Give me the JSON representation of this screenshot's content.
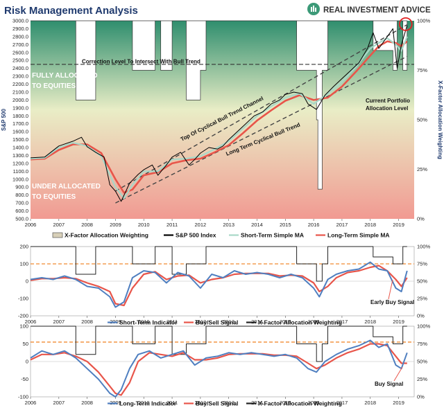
{
  "header": {
    "title": "Risk Management Analysis",
    "brand": "REAL INVESTMENT ADVICE"
  },
  "colors": {
    "title": "#1f3a6e",
    "black_line": "#000000",
    "short_ma": "#a8d8c8",
    "long_ma": "#e8554a",
    "indicator": "#4f7fc0",
    "signal": "#e8554a",
    "threshold": "#f08a30",
    "channel": "#444444",
    "green_top": "#3c9a78",
    "red_bottom": "#f09c96"
  },
  "chart_data": [
    {
      "type": "line",
      "ylabel": "S&P 500",
      "y2label": "X-Factor Allocation Weighting",
      "ylim": [
        500,
        3000
      ],
      "y2lim": [
        0,
        100
      ],
      "yticks": [
        "3000.0",
        "2900.0",
        "2800.0",
        "2700.0",
        "2600.0",
        "2500.0",
        "2400.0",
        "2300.0",
        "2200.0",
        "2100.0",
        "2000.0",
        "1900.0",
        "1800.0",
        "1700.0",
        "1600.0",
        "1500.0",
        "1400.0",
        "1300.0",
        "1200.0",
        "1100.0",
        "1000.0",
        "900.0",
        "800.0",
        "700.0",
        "600.0",
        "500.0"
      ],
      "y2ticks": [
        "100%",
        "75%",
        "50%",
        "25%",
        "0%"
      ],
      "xticks": [
        "2006",
        "2007",
        "2008",
        "2009",
        "2010",
        "2011",
        "2012",
        "2013",
        "2014",
        "2015",
        "2016",
        "2017",
        "2018",
        "2019"
      ],
      "legend": [
        "X-Factor Allocation Weighting",
        "S&P 500 Index",
        "Short-Term Simple MA",
        "Long-Term Simple MA"
      ],
      "annotations": [
        "Correction Level To Intersect With Bull Trend",
        "FULLY ALLOCATED",
        "TO EQUITIES",
        "UNDER ALLOCATED",
        "TO EQUITIES",
        "Top Of Cyclical Bull Trend Channel",
        "Long Term Cyclical Bull Trend",
        "Current Portfolio",
        "Allocation Level"
      ],
      "correction_level": 2450,
      "sp500": {
        "x": [
          2006.0,
          2006.5,
          2007.0,
          2007.5,
          2007.8,
          2008.0,
          2008.3,
          2008.6,
          2008.8,
          2009.0,
          2009.2,
          2009.5,
          2009.8,
          2010.0,
          2010.3,
          2010.5,
          2010.8,
          2011.0,
          2011.3,
          2011.6,
          2011.8,
          2012.0,
          2012.3,
          2012.6,
          2012.8,
          2013.0,
          2013.3,
          2013.6,
          2013.9,
          2014.2,
          2014.5,
          2014.8,
          2015.0,
          2015.3,
          2015.6,
          2015.8,
          2016.1,
          2016.4,
          2016.7,
          2017.0,
          2017.3,
          2017.6,
          2017.9,
          2018.1,
          2018.3,
          2018.6,
          2018.8,
          2018.95,
          2019.1,
          2019.3
        ],
        "y": [
          1270,
          1280,
          1420,
          1480,
          1530,
          1410,
          1340,
          1280,
          930,
          850,
          720,
          950,
          1060,
          1120,
          1180,
          1050,
          1180,
          1280,
          1340,
          1180,
          1250,
          1330,
          1400,
          1380,
          1420,
          1500,
          1600,
          1700,
          1800,
          1850,
          1950,
          2000,
          2070,
          2100,
          2080,
          1950,
          1880,
          2060,
          2170,
          2270,
          2370,
          2470,
          2650,
          2850,
          2650,
          2800,
          2900,
          2400,
          2700,
          2940
        ]
      },
      "short_ma": {
        "x": [
          2006.0,
          2006.5,
          2007.0,
          2007.5,
          2008.0,
          2008.5,
          2009.0,
          2009.3,
          2009.6,
          2010.0,
          2010.5,
          2011.0,
          2011.5,
          2012.0,
          2012.5,
          2013.0,
          2013.5,
          2014.0,
          2014.5,
          2015.0,
          2015.5,
          2016.0,
          2016.5,
          2017.0,
          2017.5,
          2018.0,
          2018.3,
          2018.6,
          2018.9,
          2019.1,
          2019.3
        ],
        "y": [
          1260,
          1270,
          1400,
          1460,
          1420,
          1290,
          900,
          760,
          930,
          1100,
          1100,
          1250,
          1260,
          1290,
          1380,
          1480,
          1640,
          1800,
          1920,
          2030,
          2080,
          1950,
          2080,
          2230,
          2420,
          2650,
          2720,
          2780,
          2700,
          2620,
          2800
        ]
      },
      "long_ma": {
        "x": [
          2006.0,
          2006.5,
          2007.0,
          2007.5,
          2008.0,
          2008.5,
          2009.0,
          2009.3,
          2009.6,
          2010.0,
          2010.5,
          2011.0,
          2011.5,
          2012.0,
          2012.5,
          2013.0,
          2013.5,
          2014.0,
          2014.5,
          2015.0,
          2015.5,
          2016.0,
          2016.5,
          2017.0,
          2017.5,
          2018.0,
          2018.3,
          2018.6,
          2018.9,
          2019.1,
          2019.3
        ],
        "y": [
          1250,
          1260,
          1370,
          1440,
          1440,
          1330,
          1000,
          830,
          870,
          1050,
          1090,
          1200,
          1240,
          1260,
          1340,
          1430,
          1580,
          1740,
          1870,
          1990,
          2060,
          2000,
          2030,
          2170,
          2360,
          2560,
          2680,
          2740,
          2720,
          2680,
          2740
        ]
      },
      "allocation": {
        "x": [
          2006.0,
          2007.6,
          2007.6,
          2008.3,
          2008.3,
          2009.6,
          2009.6,
          2010.4,
          2010.4,
          2010.6,
          2010.6,
          2011.0,
          2011.0,
          2011.5,
          2011.5,
          2012.0,
          2012.0,
          2012.2,
          2012.2,
          2015.4,
          2015.4,
          2016.1,
          2016.1,
          2016.15,
          2016.15,
          2016.3,
          2016.3,
          2016.5,
          2016.5,
          2018.1,
          2018.1,
          2018.8,
          2018.8,
          2018.95,
          2018.95,
          2019.15,
          2019.15,
          2019.3
        ],
        "y": [
          100,
          100,
          60,
          60,
          100,
          100,
          75,
          75,
          100,
          100,
          75,
          75,
          100,
          100,
          60,
          60,
          75,
          75,
          100,
          100,
          75,
          75,
          50,
          50,
          15,
          15,
          75,
          75,
          100,
          100,
          85,
          85,
          75,
          75,
          100,
          100,
          75,
          75
        ]
      },
      "channel_upper": {
        "x": [
          2009.0,
          2019.3
        ],
        "y": [
          850,
          2950
        ]
      },
      "channel_lower": {
        "x": [
          2009.0,
          2019.3
        ],
        "y": [
          700,
          2550
        ]
      }
    },
    {
      "type": "line",
      "ylim": [
        -200,
        200
      ],
      "y2lim": [
        0,
        100
      ],
      "yticks": [
        "200",
        "100",
        "0",
        "-100",
        "-200"
      ],
      "y2ticks": [
        "100%",
        "75%",
        "50%",
        "25%",
        "0%"
      ],
      "xticks": [
        "2006",
        "2007",
        "2008",
        "2009",
        "2010",
        "2011",
        "2012",
        "2013",
        "2014",
        "2015",
        "2016",
        "2017",
        "2018",
        "2019"
      ],
      "legend": [
        "Short-Term Indicator",
        "Buy/Sell Signal",
        "X-Factor Allocation Weighting"
      ],
      "annotations": [
        "Early Buy Signal"
      ],
      "threshold": 100,
      "indicator": {
        "x": [
          2006.0,
          2006.4,
          2006.8,
          2007.2,
          2007.6,
          2008.0,
          2008.4,
          2008.8,
          2009.0,
          2009.3,
          2009.6,
          2010.0,
          2010.4,
          2010.8,
          2011.2,
          2011.6,
          2012.0,
          2012.4,
          2012.8,
          2013.2,
          2013.6,
          2014.0,
          2014.4,
          2014.8,
          2015.2,
          2015.6,
          2016.0,
          2016.2,
          2016.5,
          2016.8,
          2017.2,
          2017.6,
          2018.0,
          2018.3,
          2018.6,
          2018.9,
          2019.1,
          2019.3
        ],
        "y": [
          10,
          20,
          10,
          30,
          10,
          -30,
          -40,
          -90,
          -150,
          -120,
          20,
          60,
          50,
          -10,
          50,
          30,
          -40,
          40,
          20,
          60,
          40,
          50,
          40,
          20,
          40,
          20,
          -40,
          -90,
          10,
          40,
          60,
          70,
          110,
          70,
          60,
          -40,
          -60,
          60
        ]
      },
      "signal": {
        "x": [
          2006.0,
          2006.4,
          2006.8,
          2007.2,
          2007.6,
          2008.0,
          2008.4,
          2008.8,
          2009.0,
          2009.3,
          2009.6,
          2010.0,
          2010.4,
          2010.8,
          2011.2,
          2011.6,
          2012.0,
          2012.4,
          2012.8,
          2013.2,
          2013.6,
          2014.0,
          2014.4,
          2014.8,
          2015.2,
          2015.6,
          2016.0,
          2016.2,
          2016.5,
          2016.8,
          2017.2,
          2017.6,
          2018.0,
          2018.3,
          2018.6,
          2018.9,
          2019.1,
          2019.3
        ],
        "y": [
          5,
          15,
          15,
          20,
          15,
          -10,
          -30,
          -60,
          -130,
          -140,
          -40,
          40,
          55,
          10,
          30,
          35,
          -10,
          10,
          20,
          40,
          45,
          45,
          45,
          30,
          35,
          30,
          -10,
          -60,
          -30,
          20,
          50,
          60,
          80,
          90,
          60,
          10,
          -30,
          20
        ]
      },
      "allocation": {
        "x": [
          2006.0,
          2007.6,
          2007.6,
          2008.3,
          2008.3,
          2009.6,
          2009.6,
          2010.4,
          2010.4,
          2011.0,
          2011.0,
          2011.5,
          2011.5,
          2012.2,
          2012.2,
          2015.4,
          2015.4,
          2016.1,
          2016.1,
          2016.3,
          2016.3,
          2016.5,
          2016.5,
          2018.1,
          2018.1,
          2018.8,
          2018.8,
          2019.15,
          2019.15,
          2019.3
        ],
        "y": [
          100,
          100,
          60,
          60,
          100,
          100,
          75,
          75,
          100,
          100,
          60,
          60,
          75,
          75,
          100,
          100,
          75,
          75,
          50,
          50,
          75,
          75,
          100,
          100,
          85,
          85,
          75,
          75,
          100,
          100
        ]
      }
    },
    {
      "type": "line",
      "ylim": [
        -100,
        100
      ],
      "y2lim": [
        0,
        100
      ],
      "yticks": [
        "100",
        "50",
        "0",
        "-50",
        "-100"
      ],
      "y2ticks": [
        "100%",
        "75%",
        "50%",
        "25%",
        "0%"
      ],
      "xticks": [
        "2006",
        "2007",
        "2008",
        "2009",
        "2010",
        "2011",
        "2012",
        "2013",
        "2014",
        "2015",
        "2016",
        "2017",
        "2018",
        "2019"
      ],
      "legend": [
        "Long-Term Indicator",
        "Buy/Sell Signal",
        "X-Factor Allocation Weighting"
      ],
      "annotations": [
        "Buy Signal"
      ],
      "threshold": 55,
      "indicator": {
        "x": [
          2006.0,
          2006.4,
          2006.8,
          2007.2,
          2007.6,
          2008.0,
          2008.4,
          2008.8,
          2009.0,
          2009.2,
          2009.5,
          2009.8,
          2010.2,
          2010.6,
          2011.0,
          2011.4,
          2011.8,
          2012.2,
          2012.6,
          2013.0,
          2013.4,
          2013.8,
          2014.2,
          2014.6,
          2015.0,
          2015.4,
          2015.8,
          2016.1,
          2016.4,
          2016.8,
          2017.2,
          2017.6,
          2018.0,
          2018.3,
          2018.6,
          2018.9,
          2019.1,
          2019.3
        ],
        "y": [
          10,
          30,
          20,
          30,
          10,
          -20,
          -50,
          -90,
          -100,
          -80,
          -20,
          20,
          30,
          10,
          20,
          30,
          -10,
          10,
          15,
          25,
          20,
          25,
          20,
          15,
          20,
          10,
          -20,
          -30,
          0,
          20,
          35,
          45,
          60,
          40,
          50,
          -10,
          -20,
          25
        ]
      },
      "signal": {
        "x": [
          2006.0,
          2006.4,
          2006.8,
          2007.2,
          2007.6,
          2008.0,
          2008.4,
          2008.8,
          2009.0,
          2009.2,
          2009.5,
          2009.8,
          2010.2,
          2010.6,
          2011.0,
          2011.4,
          2011.8,
          2012.2,
          2012.6,
          2013.0,
          2013.4,
          2013.8,
          2014.2,
          2014.6,
          2015.0,
          2015.4,
          2015.8,
          2016.1,
          2016.4,
          2016.8,
          2017.2,
          2017.6,
          2018.0,
          2018.3,
          2018.6,
          2018.9,
          2019.1,
          2019.3
        ],
        "y": [
          5,
          20,
          20,
          25,
          15,
          0,
          -30,
          -70,
          -90,
          -95,
          -60,
          0,
          25,
          20,
          15,
          25,
          5,
          5,
          10,
          20,
          22,
          22,
          22,
          18,
          18,
          15,
          -5,
          -20,
          -10,
          10,
          25,
          35,
          50,
          50,
          45,
          15,
          -5,
          -5
        ]
      },
      "allocation": {
        "x": [
          2006.0,
          2007.6,
          2007.6,
          2008.3,
          2008.3,
          2009.6,
          2009.6,
          2010.4,
          2010.4,
          2011.0,
          2011.0,
          2011.5,
          2011.5,
          2012.2,
          2012.2,
          2015.4,
          2015.4,
          2016.1,
          2016.1,
          2016.3,
          2016.3,
          2016.5,
          2016.5,
          2018.1,
          2018.1,
          2018.8,
          2018.8,
          2019.15,
          2019.15,
          2019.3
        ],
        "y": [
          100,
          100,
          60,
          60,
          100,
          100,
          75,
          75,
          100,
          100,
          60,
          60,
          75,
          75,
          100,
          100,
          75,
          75,
          50,
          50,
          75,
          75,
          100,
          100,
          85,
          85,
          75,
          75,
          100,
          100
        ]
      }
    }
  ]
}
